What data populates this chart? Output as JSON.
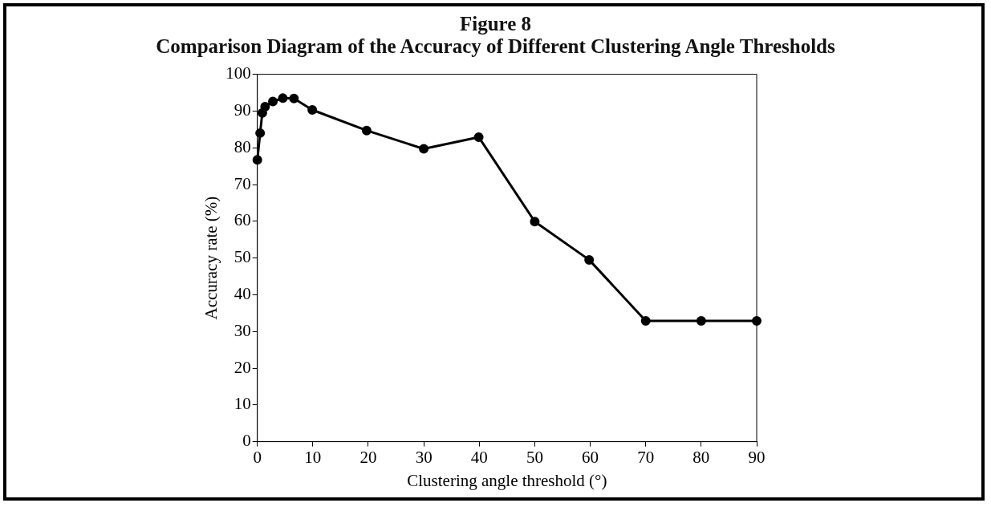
{
  "chart_data": {
    "type": "line",
    "title": "Figure 8",
    "subtitle": "Comparison Diagram of the Accuracy of Different Clustering Angle Thresholds",
    "xlabel": "Clustering angle threshold (°)",
    "ylabel": "Accuracy rate (%)",
    "series": [
      {
        "color": "#000000",
        "x": [
          0,
          0.5,
          0.9,
          1.4,
          2.8,
          4.6,
          6.6,
          9.9,
          19.7,
          30,
          39.9,
          50,
          59.8,
          70,
          80,
          90
        ],
        "values": [
          76.7,
          84,
          89.5,
          91.2,
          92.6,
          93.5,
          93.4,
          90.3,
          84.7,
          79.7,
          82.9,
          59.9,
          49.5,
          32.9,
          32.9,
          32.9
        ]
      }
    ],
    "xlim": [
      0,
      90
    ],
    "xticks": [
      0,
      10,
      20,
      30,
      40,
      50,
      60,
      70,
      80,
      90
    ],
    "ylim": [
      0,
      100
    ],
    "yticks": [
      0,
      10,
      20,
      30,
      40,
      50,
      60,
      70,
      80,
      90,
      100
    ],
    "grid": false,
    "legend": false,
    "marker": "circle",
    "line_style": "solid"
  }
}
